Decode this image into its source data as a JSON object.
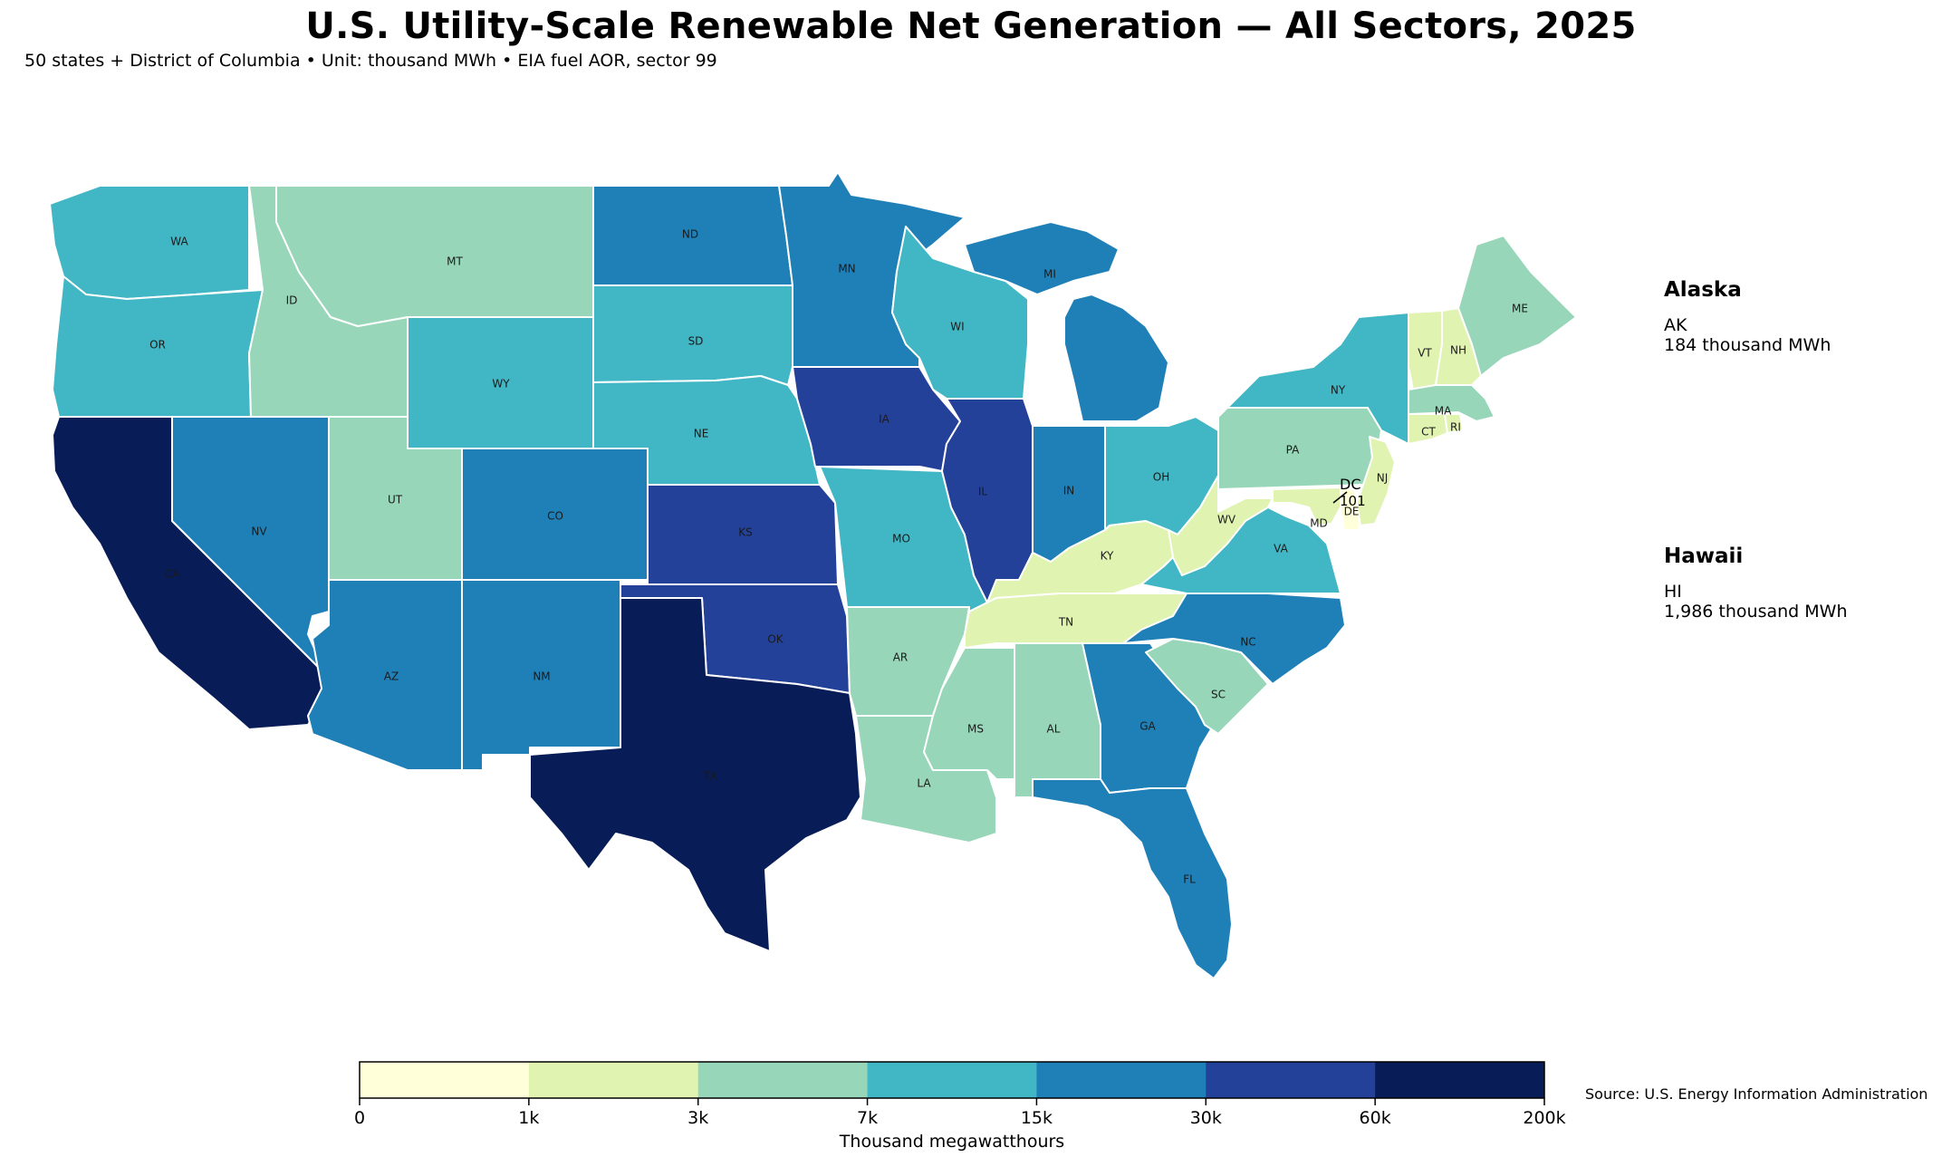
{
  "title": "U.S. Utility-Scale Renewable Net Generation — All Sectors, 2025",
  "subtitle": "50 states + District of Columbia • Unit: thousand MWh • EIA fuel AOR, sector 99",
  "source": "Source: U.S. Energy Information Administration",
  "colors": {
    "bin0": "#ffffd9",
    "bin1": "#e0f3b1",
    "bin2": "#97d6b9",
    "bin3": "#41b6c4",
    "bin4": "#1f80b8",
    "bin5": "#24419a",
    "bin6": "#081d58",
    "border": "#ffffff"
  },
  "legend": {
    "title": "Thousand megawatthours",
    "ticks": [
      "0",
      "1k",
      "3k",
      "7k",
      "15k",
      "30k",
      "60k",
      "200k"
    ]
  },
  "insets": {
    "alaska": {
      "heading": "Alaska",
      "code": "AK",
      "value_text": "184 thousand MWh"
    },
    "hawaii": {
      "heading": "Hawaii",
      "code": "HI",
      "value_text": "1,986 thousand MWh"
    }
  },
  "dc_callout": {
    "code": "DC",
    "value": "101"
  },
  "states": [
    {
      "code": "WA",
      "bin": 3
    },
    {
      "code": "OR",
      "bin": 3
    },
    {
      "code": "CA",
      "bin": 6
    },
    {
      "code": "ID",
      "bin": 2
    },
    {
      "code": "NV",
      "bin": 4
    },
    {
      "code": "MT",
      "bin": 2
    },
    {
      "code": "WY",
      "bin": 3
    },
    {
      "code": "UT",
      "bin": 2
    },
    {
      "code": "AZ",
      "bin": 4
    },
    {
      "code": "CO",
      "bin": 4
    },
    {
      "code": "NM",
      "bin": 4
    },
    {
      "code": "ND",
      "bin": 4
    },
    {
      "code": "SD",
      "bin": 3
    },
    {
      "code": "NE",
      "bin": 3
    },
    {
      "code": "KS",
      "bin": 5
    },
    {
      "code": "OK",
      "bin": 5
    },
    {
      "code": "TX",
      "bin": 6
    },
    {
      "code": "MN",
      "bin": 4
    },
    {
      "code": "IA",
      "bin": 5
    },
    {
      "code": "MO",
      "bin": 3
    },
    {
      "code": "AR",
      "bin": 2
    },
    {
      "code": "LA",
      "bin": 2
    },
    {
      "code": "WI",
      "bin": 3
    },
    {
      "code": "IL",
      "bin": 5
    },
    {
      "code": "MI",
      "bin": 4
    },
    {
      "code": "IN",
      "bin": 4
    },
    {
      "code": "OH",
      "bin": 3
    },
    {
      "code": "KY",
      "bin": 1
    },
    {
      "code": "TN",
      "bin": 1
    },
    {
      "code": "MS",
      "bin": 2
    },
    {
      "code": "AL",
      "bin": 2
    },
    {
      "code": "GA",
      "bin": 4
    },
    {
      "code": "FL",
      "bin": 4
    },
    {
      "code": "SC",
      "bin": 2
    },
    {
      "code": "NC",
      "bin": 4
    },
    {
      "code": "VA",
      "bin": 3
    },
    {
      "code": "WV",
      "bin": 1
    },
    {
      "code": "PA",
      "bin": 2
    },
    {
      "code": "NY",
      "bin": 3
    },
    {
      "code": "VT",
      "bin": 1
    },
    {
      "code": "NH",
      "bin": 1
    },
    {
      "code": "ME",
      "bin": 2
    },
    {
      "code": "MA",
      "bin": 2
    },
    {
      "code": "CT",
      "bin": 1
    },
    {
      "code": "RI",
      "bin": 1
    },
    {
      "code": "NJ",
      "bin": 1
    },
    {
      "code": "DE",
      "bin": 0
    },
    {
      "code": "MD",
      "bin": 1
    }
  ]
}
